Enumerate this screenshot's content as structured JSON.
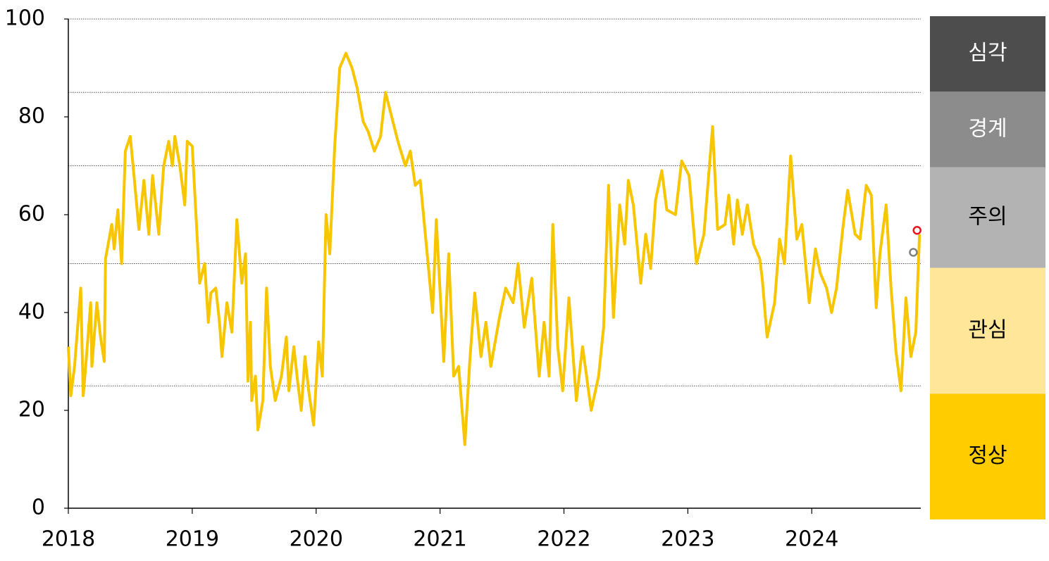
{
  "chart_data": {
    "type": "line",
    "x": [
      2018.0,
      2018.02,
      2018.05,
      2018.1,
      2018.12,
      2018.14,
      2018.18,
      2018.19,
      2018.23,
      2018.26,
      2018.29,
      2018.3,
      2018.35,
      2018.37,
      2018.4,
      2018.43,
      2018.46,
      2018.5,
      2018.53,
      2018.57,
      2018.61,
      2018.65,
      2018.68,
      2018.73,
      2018.77,
      2018.81,
      2018.84,
      2018.86,
      2018.9,
      2018.94,
      2018.96,
      2019.0,
      2019.06,
      2019.1,
      2019.13,
      2019.15,
      2019.19,
      2019.22,
      2019.24,
      2019.28,
      2019.32,
      2019.36,
      2019.4,
      2019.43,
      2019.45,
      2019.47,
      2019.48,
      2019.51,
      2019.53,
      2019.57,
      2019.6,
      2019.63,
      2019.67,
      2019.72,
      2019.76,
      2019.78,
      2019.82,
      2019.85,
      2019.88,
      2019.91,
      2019.94,
      2019.98,
      2020.02,
      2020.05,
      2020.08,
      2020.11,
      2020.15,
      2020.19,
      2020.24,
      2020.29,
      2020.33,
      2020.38,
      2020.42,
      2020.47,
      2020.52,
      2020.56,
      2020.61,
      2020.66,
      2020.72,
      2020.76,
      2020.8,
      2020.84,
      2020.9,
      2020.94,
      2020.97,
      2021.03,
      2021.07,
      2021.11,
      2021.15,
      2021.2,
      2021.24,
      2021.28,
      2021.33,
      2021.37,
      2021.41,
      2021.48,
      2021.53,
      2021.59,
      2021.63,
      2021.68,
      2021.74,
      2021.8,
      2021.84,
      2021.88,
      2021.91,
      2021.95,
      2021.99,
      2022.04,
      2022.1,
      2022.15,
      2022.22,
      2022.28,
      2022.32,
      2022.36,
      2022.4,
      2022.45,
      2022.49,
      2022.52,
      2022.56,
      2022.62,
      2022.66,
      2022.7,
      2022.74,
      2022.79,
      2022.83,
      2022.9,
      2022.95,
      2023.01,
      2023.07,
      2023.13,
      2023.2,
      2023.24,
      2023.3,
      2023.33,
      2023.37,
      2023.4,
      2023.44,
      2023.48,
      2023.53,
      2023.58,
      2023.6,
      2023.64,
      2023.7,
      2023.74,
      2023.78,
      2023.83,
      2023.88,
      2023.92,
      2023.98,
      2024.03,
      2024.07,
      2024.12,
      2024.16,
      2024.2,
      2024.25,
      2024.29,
      2024.35,
      2024.39,
      2024.44,
      2024.48,
      2024.52,
      2024.55,
      2024.6,
      2024.64,
      2024.68,
      2024.72,
      2024.76,
      2024.8,
      2024.84,
      2024.87
    ],
    "series": [
      {
        "color": "#f7c600",
        "values": [
          33,
          23,
          29,
          45,
          23,
          29,
          42,
          29,
          42,
          35,
          30,
          51,
          58,
          53,
          61,
          50,
          73,
          76,
          68,
          57,
          67,
          56,
          68,
          56,
          70,
          75,
          70,
          76,
          70,
          62,
          75,
          74,
          46,
          50,
          38,
          44,
          45,
          38,
          31,
          42,
          36,
          59,
          46,
          52,
          26,
          38,
          22,
          27,
          16,
          22,
          45,
          29,
          22,
          27,
          35,
          24,
          33,
          26,
          20,
          31,
          24,
          17,
          34,
          27,
          60,
          52,
          74,
          90,
          93,
          90,
          86,
          79,
          77,
          73,
          76,
          85,
          80,
          75,
          70,
          73,
          66,
          67,
          51,
          40,
          59,
          30,
          52,
          27,
          29,
          13,
          30,
          44,
          31,
          38,
          29,
          39,
          45,
          42,
          50,
          37,
          47,
          27,
          38,
          27,
          58,
          33,
          24,
          43,
          22,
          33,
          20,
          27,
          37,
          66,
          39,
          62,
          54,
          67,
          62,
          46,
          56,
          49,
          63,
          69,
          61,
          60,
          71,
          68,
          50,
          56,
          78,
          57,
          58,
          64,
          54,
          63,
          56,
          62,
          54,
          51,
          47,
          35,
          42,
          55,
          50,
          72,
          55,
          58,
          42,
          53,
          48,
          45,
          40,
          45,
          57,
          65,
          56,
          55,
          66,
          64,
          41,
          52,
          62,
          45,
          32,
          24,
          43,
          31,
          36,
          56
        ]
      }
    ],
    "markers": [
      {
        "x": 2024.82,
        "value": 52.3,
        "color": "#7f7f7f"
      },
      {
        "x": 2024.85,
        "value": 56.8,
        "color": "#e8141c"
      }
    ],
    "xlim": [
      2018,
      2024.88
    ],
    "xticks": [
      2018,
      2019,
      2020,
      2021,
      2022,
      2023,
      2024
    ],
    "ylim": [
      0,
      100
    ],
    "yticks": [
      0,
      20,
      40,
      60,
      80,
      100
    ],
    "levels": [
      {
        "name": "정상",
        "from": 0,
        "to": 25,
        "color": "#ffcc00",
        "text_color": "#000"
      },
      {
        "name": "관심",
        "from": 25,
        "to": 50,
        "color": "#ffe699",
        "text_color": "#000"
      },
      {
        "name": "주의",
        "from": 50,
        "to": 70,
        "color": "#b3b3b3",
        "text_color": "#000"
      },
      {
        "name": "경계",
        "from": 70,
        "to": 85,
        "color": "#8c8c8c",
        "text_color": "#fff"
      },
      {
        "name": "심각",
        "from": 85,
        "to": 100,
        "color": "#4d4d4d",
        "text_color": "#fff"
      }
    ]
  }
}
